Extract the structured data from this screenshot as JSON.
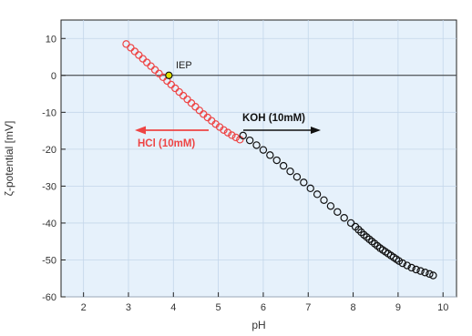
{
  "chart_data": {
    "type": "scatter",
    "xlabel": "pH",
    "ylabel": "ζ-potential [mV]",
    "xlim": [
      1.5,
      10.3
    ],
    "ylim": [
      -60,
      15
    ],
    "xticks": [
      2,
      3,
      4,
      5,
      6,
      7,
      8,
      9,
      10
    ],
    "yticks": [
      10,
      0,
      -10,
      -20,
      -30,
      -40,
      -50,
      -60
    ],
    "grid": true,
    "colors": {
      "acid": "#ee4444",
      "base": "#111111",
      "reference_line": "#333333",
      "iep_fill": "#e0e000"
    },
    "series": [
      {
        "titration": "HCl",
        "color": "#ee4444",
        "x": [
          2.95,
          3.05,
          3.14,
          3.23,
          3.32,
          3.41,
          3.5,
          3.59,
          3.68,
          3.77,
          3.86,
          3.95,
          4.04,
          4.13,
          4.22,
          4.31,
          4.4,
          4.49,
          4.58,
          4.67,
          4.76,
          4.85,
          4.94,
          5.03,
          5.12,
          5.21,
          5.3,
          5.39,
          5.48
        ],
        "y": [
          8.5,
          7.5,
          6.5,
          5.5,
          4.5,
          3.5,
          2.5,
          1.5,
          0.5,
          -0.5,
          -1.5,
          -2.5,
          -3.5,
          -4.5,
          -5.5,
          -6.5,
          -7.5,
          -8.5,
          -9.5,
          -10.5,
          -11.4,
          -12.3,
          -13.2,
          -14.0,
          -14.8,
          -15.5,
          -16.2,
          -16.8,
          -17.4
        ]
      },
      {
        "titration": "KOH",
        "color": "#111111",
        "x": [
          5.55,
          5.7,
          5.85,
          6.0,
          6.15,
          6.3,
          6.45,
          6.6,
          6.75,
          6.9,
          7.05,
          7.2,
          7.35,
          7.5,
          7.65,
          7.8,
          7.95,
          8.05,
          8.12,
          8.18,
          8.24,
          8.3,
          8.36,
          8.42,
          8.48,
          8.54,
          8.6,
          8.66,
          8.72,
          8.78,
          8.84,
          8.9,
          8.96,
          9.02,
          9.1,
          9.2,
          9.3,
          9.4,
          9.5,
          9.6,
          9.7,
          9.78
        ],
        "y": [
          -16.3,
          -17.6,
          -18.9,
          -20.2,
          -21.6,
          -23.0,
          -24.5,
          -26.0,
          -27.5,
          -29.0,
          -30.6,
          -32.2,
          -33.8,
          -35.4,
          -37.0,
          -38.6,
          -40.0,
          -41.0,
          -41.8,
          -42.5,
          -43.2,
          -43.8,
          -44.4,
          -45.0,
          -45.6,
          -46.2,
          -46.8,
          -47.3,
          -47.8,
          -48.3,
          -48.8,
          -49.3,
          -49.8,
          -50.3,
          -50.9,
          -51.5,
          -52.1,
          -52.6,
          -53.0,
          -53.4,
          -53.8,
          -54.2
        ]
      }
    ],
    "iep": {
      "x": 3.9,
      "y": 0.0
    },
    "annotations": {
      "iep_label": "IEP",
      "koh_label": "KOH (10mM)",
      "hcl_label": "HCl (10mM)"
    }
  }
}
